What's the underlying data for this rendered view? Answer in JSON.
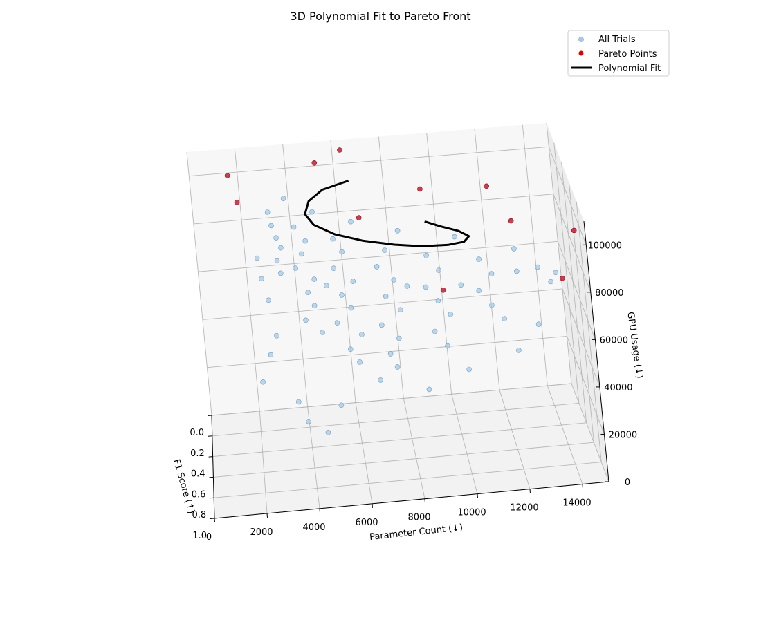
{
  "chart_data": {
    "type": "scatter",
    "title": "3D Polynomial Fit to Pareto Front",
    "axes": {
      "x": {
        "label": "F1 Score (↑)",
        "ticks": [
          "0.0",
          "0.2",
          "0.4",
          "0.6",
          "0.8",
          "1.0"
        ],
        "range": [
          0,
          1
        ]
      },
      "y": {
        "label": "Parameter Count (↓)",
        "ticks": [
          "0",
          "2000",
          "4000",
          "6000",
          "8000",
          "10000",
          "12000",
          "14000"
        ],
        "range": [
          0,
          15000
        ]
      },
      "z": {
        "label": "GPU Usage (↓)",
        "ticks": [
          "0",
          "20000",
          "40000",
          "60000",
          "80000",
          "100000"
        ],
        "range": [
          0,
          110000
        ]
      }
    },
    "grid": true,
    "legend": {
      "placement": "top-right",
      "entries": [
        {
          "label": "All Trials",
          "color": "#8fbbdc"
        },
        {
          "label": "Pareto Points",
          "color": "#d62020"
        },
        {
          "label": "Polynomial Fit",
          "color": "#000000"
        }
      ]
    },
    "series": [
      {
        "name": "All Trials",
        "kind": "scatter",
        "points": [
          [
            0.18,
            3100,
            90000
          ],
          [
            0.22,
            3200,
            86000
          ],
          [
            0.25,
            3350,
            82000
          ],
          [
            0.28,
            3500,
            79000
          ],
          [
            0.31,
            3300,
            75000
          ],
          [
            0.34,
            3400,
            71000
          ],
          [
            0.3,
            4100,
            88000
          ],
          [
            0.35,
            4500,
            84000
          ],
          [
            0.38,
            4300,
            80000
          ],
          [
            0.42,
            4000,
            76000
          ],
          [
            0.45,
            4700,
            72000
          ],
          [
            0.48,
            4400,
            68000
          ],
          [
            0.52,
            4600,
            64000
          ],
          [
            0.56,
            4200,
            60000
          ],
          [
            0.6,
            4800,
            56000
          ],
          [
            0.4,
            5600,
            86000
          ],
          [
            0.44,
            5900,
            82000
          ],
          [
            0.5,
            5500,
            78000
          ],
          [
            0.55,
            6200,
            74000
          ],
          [
            0.58,
            5700,
            70000
          ],
          [
            0.62,
            6000,
            66000
          ],
          [
            0.66,
            5400,
            62000
          ],
          [
            0.7,
            6300,
            58000
          ],
          [
            0.74,
            5800,
            54000
          ],
          [
            0.78,
            6100,
            50000
          ],
          [
            0.46,
            7600,
            82000
          ],
          [
            0.52,
            7200,
            78000
          ],
          [
            0.57,
            7800,
            74000
          ],
          [
            0.63,
            7400,
            70000
          ],
          [
            0.68,
            7900,
            66000
          ],
          [
            0.72,
            7100,
            62000
          ],
          [
            0.77,
            7700,
            58000
          ],
          [
            0.82,
            7300,
            54000
          ],
          [
            0.86,
            7500,
            50000
          ],
          [
            0.5,
            9200,
            80000
          ],
          [
            0.56,
            9600,
            76000
          ],
          [
            0.62,
            9000,
            72000
          ],
          [
            0.67,
            9400,
            68000
          ],
          [
            0.72,
            9800,
            64000
          ],
          [
            0.78,
            9100,
            60000
          ],
          [
            0.84,
            9500,
            56000
          ],
          [
            0.58,
            11200,
            80000
          ],
          [
            0.64,
            11600,
            76000
          ],
          [
            0.7,
            11000,
            72000
          ],
          [
            0.76,
            11400,
            68000
          ],
          [
            0.81,
            11800,
            64000
          ],
          [
            0.66,
            13400,
            78000
          ],
          [
            0.72,
            13800,
            74000
          ],
          [
            0.2,
            3800,
            96000
          ],
          [
            0.26,
            4900,
            92000
          ],
          [
            0.34,
            6400,
            90000
          ],
          [
            0.42,
            8200,
            88000
          ],
          [
            0.48,
            10400,
            86000
          ],
          [
            0.6,
            12600,
            84000
          ],
          [
            0.88,
            6800,
            46000
          ],
          [
            0.92,
            8600,
            42000
          ],
          [
            0.95,
            5200,
            40000
          ],
          [
            0.9,
            10200,
            48000
          ],
          [
            0.85,
            12200,
            52000
          ],
          [
            0.15,
            2500,
            70000
          ],
          [
            0.12,
            2600,
            60000
          ],
          [
            0.1,
            2800,
            50000
          ],
          [
            0.24,
            5200,
            60000
          ],
          [
            0.36,
            8400,
            62000
          ],
          [
            0.3,
            10600,
            58000
          ],
          [
            0.94,
            3900,
            34000
          ],
          [
            0.97,
            4600,
            30000
          ],
          [
            0.88,
            3600,
            40000
          ],
          [
            0.4,
            12800,
            66000
          ],
          [
            0.54,
            14200,
            70000
          ],
          [
            0.8,
            13100,
            60000
          ],
          [
            0.75,
            2300,
            44000
          ],
          [
            0.68,
            2700,
            52000
          ],
          [
            0.64,
            3000,
            58000
          ]
        ]
      },
      {
        "name": "Pareto Points",
        "kind": "scatter",
        "points": [
          [
            0.12,
            1600,
            104000
          ],
          [
            0.2,
            1900,
            96000
          ],
          [
            0.16,
            5200,
            108000
          ],
          [
            0.1,
            6300,
            110000
          ],
          [
            0.45,
            6700,
            96000
          ],
          [
            0.5,
            9200,
            108000
          ],
          [
            0.55,
            11800,
            109000
          ],
          [
            0.7,
            12500,
            100000
          ],
          [
            0.8,
            14800,
            98000
          ],
          [
            0.98,
            14000,
            86000
          ],
          [
            0.9,
            9500,
            82000
          ]
        ]
      },
      {
        "name": "Polynomial Fit",
        "kind": "line",
        "param": "t",
        "points": [
          [
            0.22,
            6500,
            102000
          ],
          [
            0.24,
            5400,
            100000
          ],
          [
            0.27,
            4800,
            97000
          ],
          [
            0.3,
            4600,
            93000
          ],
          [
            0.34,
            4900,
            90000
          ],
          [
            0.38,
            5700,
            87000
          ],
          [
            0.42,
            6800,
            85000
          ],
          [
            0.46,
            8000,
            84000
          ],
          [
            0.5,
            9100,
            84000
          ],
          [
            0.53,
            10100,
            85000
          ],
          [
            0.56,
            10700,
            87000
          ],
          [
            0.58,
            10900,
            90000
          ],
          [
            0.59,
            10500,
            93000
          ],
          [
            0.6,
            9800,
            96000
          ],
          [
            0.61,
            9200,
            99000
          ]
        ]
      }
    ]
  }
}
